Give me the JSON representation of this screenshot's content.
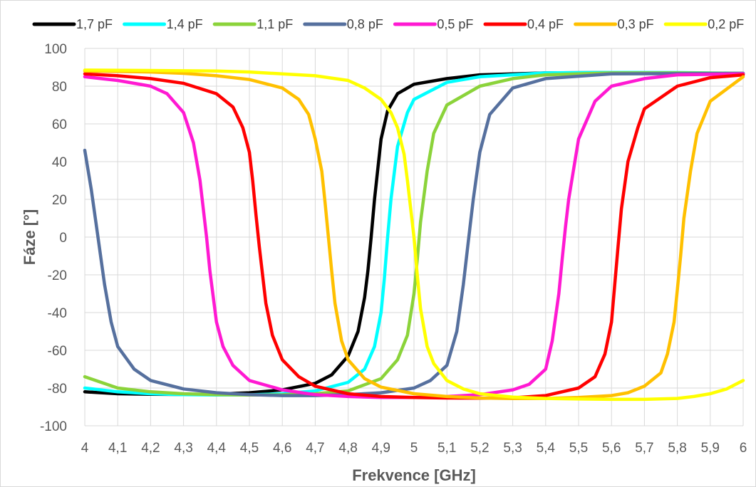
{
  "chart_data": {
    "type": "line",
    "title": "",
    "xlabel": "Frekvence [GHz]",
    "ylabel": "Fáze [°]",
    "xlim": [
      4,
      6
    ],
    "ylim": [
      -100,
      100
    ],
    "x_ticks": [
      "4",
      "4,1",
      "4,2",
      "4,3",
      "4,4",
      "4,5",
      "4,6",
      "4,7",
      "4,8",
      "4,9",
      "5",
      "5,1",
      "5,2",
      "5,3",
      "5,4",
      "5,5",
      "5,6",
      "5,7",
      "5,8",
      "5,9",
      "6"
    ],
    "y_ticks": [
      "100",
      "80",
      "60",
      "40",
      "20",
      "0",
      "-20",
      "-40",
      "-60",
      "-80",
      "-100"
    ],
    "grid": "vertical and horizontal",
    "legend_position": "top",
    "series": [
      {
        "name": "1,7 pF",
        "color": "#000000",
        "x": [
          4.0,
          4.1,
          4.2,
          4.3,
          4.4,
          4.5,
          4.6,
          4.7,
          4.75,
          4.8,
          4.83,
          4.85,
          4.86,
          4.87,
          4.88,
          4.9,
          4.92,
          4.95,
          5.0,
          5.1,
          5.2,
          5.4,
          5.6,
          5.8,
          6.0
        ],
        "y": [
          -82,
          -83,
          -83.3,
          -83.4,
          -83.2,
          -82.5,
          -81,
          -77.5,
          -73,
          -63,
          -50,
          -32,
          -18,
          0,
          20,
          52,
          67,
          76,
          81,
          84,
          86,
          87,
          87.2,
          87,
          86.5
        ]
      },
      {
        "name": "1,4 pF",
        "color": "#00FFFF",
        "x": [
          4.0,
          4.1,
          4.2,
          4.3,
          4.4,
          4.5,
          4.6,
          4.7,
          4.8,
          4.85,
          4.88,
          4.9,
          4.91,
          4.92,
          4.93,
          4.95,
          4.98,
          5.0,
          5.1,
          5.2,
          5.4,
          5.6,
          5.8,
          6.0
        ],
        "y": [
          -80,
          -82,
          -83,
          -83.5,
          -83.7,
          -83.6,
          -83,
          -81.5,
          -77,
          -70,
          -58,
          -40,
          -22,
          0,
          20,
          48,
          66,
          73,
          82,
          85,
          87,
          87.3,
          87.2,
          86.8
        ]
      },
      {
        "name": "1,1 pF",
        "color": "#8BD33A",
        "x": [
          4.0,
          4.1,
          4.2,
          4.3,
          4.4,
          4.5,
          4.6,
          4.7,
          4.8,
          4.9,
          4.95,
          4.98,
          5.0,
          5.01,
          5.02,
          5.04,
          5.06,
          5.1,
          5.2,
          5.3,
          5.4,
          5.6,
          5.8,
          6.0
        ],
        "y": [
          -74,
          -80,
          -82,
          -83,
          -83.5,
          -83.7,
          -83.6,
          -83,
          -81.5,
          -75,
          -65,
          -52,
          -30,
          -12,
          8,
          35,
          55,
          70,
          80,
          84,
          86,
          87,
          87,
          86.8
        ]
      },
      {
        "name": "0,8 pF",
        "color": "#56709E",
        "x": [
          4.0,
          4.02,
          4.04,
          4.06,
          4.08,
          4.1,
          4.15,
          4.2,
          4.3,
          4.4,
          4.5,
          4.6,
          4.7,
          4.8,
          4.9,
          5.0,
          5.05,
          5.1,
          5.13,
          5.15,
          5.16,
          5.17,
          5.18,
          5.2,
          5.23,
          5.3,
          5.4,
          5.6,
          6.0
        ],
        "y": [
          46,
          25,
          0,
          -25,
          -45,
          -58,
          -70,
          -76,
          -80.5,
          -82.5,
          -83.5,
          -84,
          -84,
          -83.5,
          -82.5,
          -80,
          -76,
          -68,
          -50,
          -25,
          -10,
          5,
          20,
          45,
          65,
          79,
          84,
          86.5,
          86.8
        ]
      },
      {
        "name": "0,5 pF",
        "color": "#FF19D2",
        "x": [
          4.0,
          4.1,
          4.2,
          4.25,
          4.3,
          4.33,
          4.35,
          4.36,
          4.37,
          4.38,
          4.4,
          4.42,
          4.45,
          4.5,
          4.6,
          4.7,
          4.8,
          4.9,
          5.0,
          5.1,
          5.2,
          5.3,
          5.35,
          5.4,
          5.42,
          5.44,
          5.45,
          5.46,
          5.47,
          5.5,
          5.55,
          5.6,
          5.7,
          5.8,
          6.0
        ],
        "y": [
          85,
          83,
          80,
          76,
          66,
          50,
          30,
          15,
          0,
          -18,
          -45,
          -58,
          -68,
          -76,
          -81,
          -83.5,
          -84.5,
          -85,
          -85,
          -84.5,
          -83.5,
          -81,
          -78,
          -70,
          -55,
          -30,
          -12,
          5,
          20,
          52,
          72,
          80,
          84,
          86,
          86.5
        ]
      },
      {
        "name": "0,4 pF",
        "color": "#FF0000",
        "x": [
          4.0,
          4.1,
          4.2,
          4.3,
          4.4,
          4.45,
          4.48,
          4.5,
          4.51,
          4.52,
          4.53,
          4.55,
          4.57,
          4.6,
          4.65,
          4.7,
          4.8,
          4.9,
          5.0,
          5.1,
          5.2,
          5.3,
          5.4,
          5.5,
          5.55,
          5.58,
          5.6,
          5.61,
          5.62,
          5.63,
          5.65,
          5.68,
          5.7,
          5.8,
          5.9,
          6.0
        ],
        "y": [
          86.5,
          85.5,
          84,
          81.5,
          76,
          69,
          58,
          45,
          30,
          12,
          -5,
          -35,
          -52,
          -65,
          -74,
          -79,
          -83,
          -84.5,
          -85,
          -85.3,
          -85.4,
          -85.2,
          -84,
          -80,
          -74,
          -62,
          -45,
          -25,
          -5,
          15,
          40,
          58,
          68,
          80,
          84.5,
          86
        ]
      },
      {
        "name": "0,3 pF",
        "color": "#FFC000",
        "x": [
          4.0,
          4.1,
          4.2,
          4.3,
          4.4,
          4.5,
          4.6,
          4.65,
          4.68,
          4.7,
          4.72,
          4.73,
          4.74,
          4.75,
          4.76,
          4.78,
          4.8,
          4.85,
          4.9,
          5.0,
          5.1,
          5.2,
          5.3,
          5.4,
          5.5,
          5.6,
          5.65,
          5.7,
          5.75,
          5.77,
          5.79,
          5.8,
          5.81,
          5.82,
          5.84,
          5.86,
          5.9,
          6.0
        ],
        "y": [
          88,
          87.8,
          87.5,
          86.8,
          85.5,
          83.5,
          79,
          73,
          65,
          52,
          35,
          18,
          0,
          -18,
          -35,
          -55,
          -65,
          -75,
          -79.5,
          -83,
          -84.5,
          -85.3,
          -85.6,
          -85.5,
          -85,
          -84,
          -82.5,
          -79,
          -72,
          -62,
          -45,
          -28,
          -10,
          10,
          35,
          55,
          72,
          85
        ]
      },
      {
        "name": "0,2 pF",
        "color": "#FFFF00",
        "x": [
          4.0,
          4.2,
          4.4,
          4.5,
          4.6,
          4.7,
          4.8,
          4.85,
          4.9,
          4.93,
          4.95,
          4.97,
          4.98,
          4.99,
          5.0,
          5.01,
          5.02,
          5.04,
          5.06,
          5.1,
          5.15,
          5.2,
          5.3,
          5.4,
          5.5,
          5.6,
          5.7,
          5.8,
          5.85,
          5.9,
          5.95,
          6.0
        ],
        "y": [
          88.5,
          88.3,
          88,
          87.5,
          86.5,
          85.5,
          83,
          79,
          73,
          66,
          58,
          44,
          30,
          15,
          0,
          -20,
          -38,
          -58,
          -67,
          -76,
          -80.5,
          -83,
          -84.8,
          -85.5,
          -85.8,
          -86,
          -86,
          -85.5,
          -84.5,
          -83,
          -80.5,
          -76
        ]
      }
    ]
  }
}
